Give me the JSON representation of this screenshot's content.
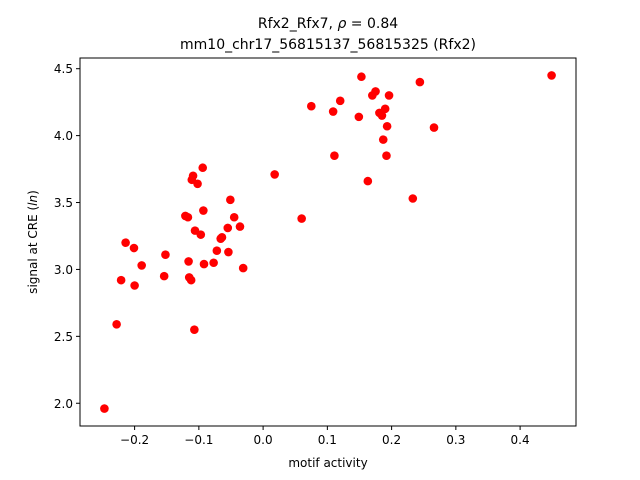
{
  "chart_data": {
    "type": "scatter",
    "title_parts": [
      "Rfx2_Rfx7, ",
      "ρ",
      " = 0.84"
    ],
    "subtitle": "mm10_chr17_56815137_56815325 (Rfx2)",
    "xlabel": "motif activity",
    "ylabel_parts": [
      "signal at CRE (",
      "ln",
      ")"
    ],
    "xlim": [
      -0.285,
      0.487
    ],
    "ylim": [
      1.83,
      4.58
    ],
    "xticks": [
      -0.2,
      -0.1,
      0.0,
      0.1,
      0.2,
      0.3,
      0.4
    ],
    "xtick_labels": [
      "−0.2",
      "−0.1",
      "0.0",
      "0.1",
      "0.2",
      "0.3",
      "0.4"
    ],
    "yticks": [
      2.0,
      2.5,
      3.0,
      3.5,
      4.0,
      4.5
    ],
    "ytick_labels": [
      "2.0",
      "2.5",
      "3.0",
      "3.5",
      "4.0",
      "4.5"
    ],
    "grid": false,
    "marker_color": "#ff0000",
    "points": [
      {
        "x": -0.247,
        "y": 1.96
      },
      {
        "x": -0.228,
        "y": 2.59
      },
      {
        "x": -0.221,
        "y": 2.92
      },
      {
        "x": -0.214,
        "y": 3.2
      },
      {
        "x": -0.201,
        "y": 3.16
      },
      {
        "x": -0.2,
        "y": 2.88
      },
      {
        "x": -0.189,
        "y": 3.03
      },
      {
        "x": -0.154,
        "y": 2.95
      },
      {
        "x": -0.152,
        "y": 3.11
      },
      {
        "x": -0.121,
        "y": 3.4
      },
      {
        "x": -0.117,
        "y": 3.39
      },
      {
        "x": -0.116,
        "y": 3.06
      },
      {
        "x": -0.115,
        "y": 2.94
      },
      {
        "x": -0.112,
        "y": 2.92
      },
      {
        "x": -0.111,
        "y": 3.67
      },
      {
        "x": -0.109,
        "y": 3.7
      },
      {
        "x": -0.107,
        "y": 2.55
      },
      {
        "x": -0.106,
        "y": 3.29
      },
      {
        "x": -0.102,
        "y": 3.64
      },
      {
        "x": -0.097,
        "y": 3.26
      },
      {
        "x": -0.094,
        "y": 3.76
      },
      {
        "x": -0.093,
        "y": 3.44
      },
      {
        "x": -0.092,
        "y": 3.04
      },
      {
        "x": -0.077,
        "y": 3.05
      },
      {
        "x": -0.072,
        "y": 3.14
      },
      {
        "x": -0.066,
        "y": 3.23
      },
      {
        "x": -0.064,
        "y": 3.24
      },
      {
        "x": -0.055,
        "y": 3.31
      },
      {
        "x": -0.054,
        "y": 3.13
      },
      {
        "x": -0.051,
        "y": 3.52
      },
      {
        "x": -0.045,
        "y": 3.39
      },
      {
        "x": -0.036,
        "y": 3.32
      },
      {
        "x": -0.031,
        "y": 3.01
      },
      {
        "x": 0.018,
        "y": 3.71
      },
      {
        "x": 0.06,
        "y": 3.38
      },
      {
        "x": 0.075,
        "y": 4.22
      },
      {
        "x": 0.109,
        "y": 4.18
      },
      {
        "x": 0.111,
        "y": 3.85
      },
      {
        "x": 0.12,
        "y": 4.26
      },
      {
        "x": 0.149,
        "y": 4.14
      },
      {
        "x": 0.153,
        "y": 4.44
      },
      {
        "x": 0.163,
        "y": 3.66
      },
      {
        "x": 0.17,
        "y": 4.3
      },
      {
        "x": 0.175,
        "y": 4.33
      },
      {
        "x": 0.181,
        "y": 4.17
      },
      {
        "x": 0.185,
        "y": 4.15
      },
      {
        "x": 0.187,
        "y": 3.97
      },
      {
        "x": 0.19,
        "y": 4.2
      },
      {
        "x": 0.192,
        "y": 3.85
      },
      {
        "x": 0.193,
        "y": 4.07
      },
      {
        "x": 0.196,
        "y": 4.3
      },
      {
        "x": 0.233,
        "y": 3.53
      },
      {
        "x": 0.244,
        "y": 4.4
      },
      {
        "x": 0.266,
        "y": 4.06
      },
      {
        "x": 0.449,
        "y": 4.45
      }
    ]
  }
}
